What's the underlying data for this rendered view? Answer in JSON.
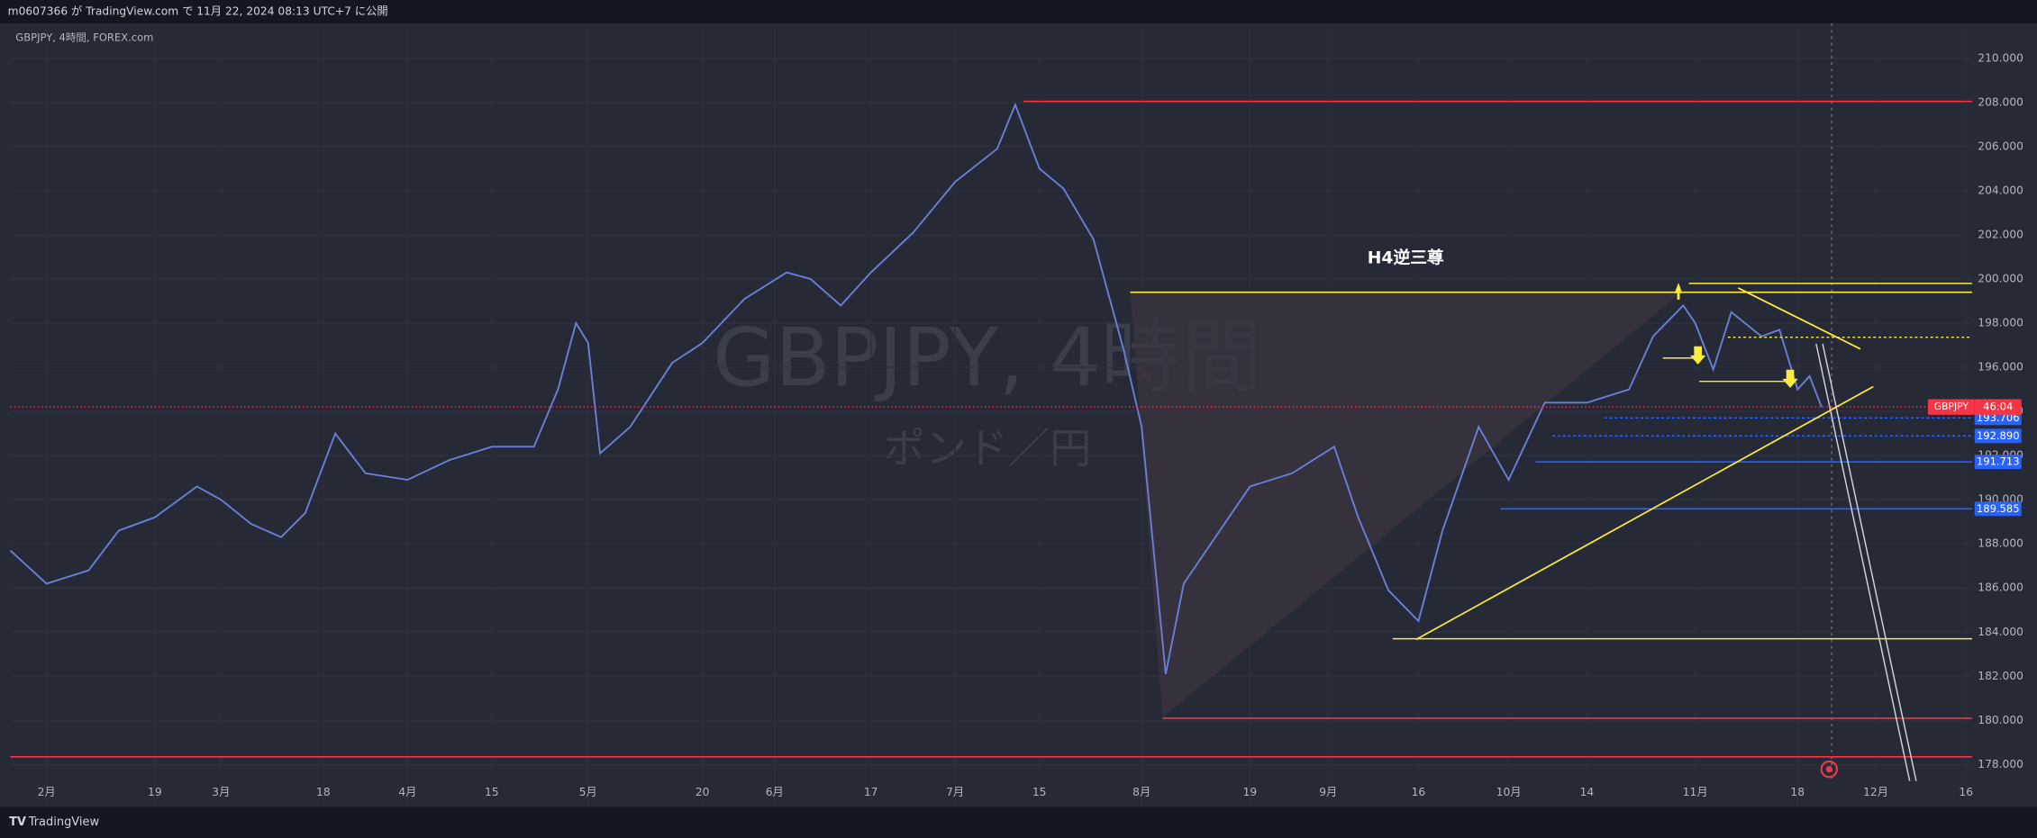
{
  "header": {
    "published": "m0607366 が TradingView.com で 11月 22, 2024 08:13 UTC+7 に公開",
    "symbol": "GBPJPY, 4時間, FOREX.com"
  },
  "footer": "TradingView",
  "chart_data": {
    "type": "line",
    "watermark": "GBPJPY, 4時間",
    "watermark_sub": "ポンド／円",
    "annotation": "H4逆三尊",
    "series": [
      {
        "name": "GBPJPY",
        "color": "#6a7fd8",
        "values": [
          187.7,
          186.2,
          186.8,
          188.6,
          189.2,
          190.6,
          190.0,
          188.9,
          188.3,
          189.4,
          193.0,
          191.2,
          190.9,
          191.8,
          192.4,
          192.4,
          195.0,
          198.0,
          197.1,
          192.1,
          193.3,
          196.2,
          197.1,
          199.1,
          200.3,
          200.0,
          198.8,
          200.3,
          202.1,
          204.4,
          205.9,
          207.9,
          205.0,
          204.1,
          201.8,
          196.8,
          193.3,
          182.1,
          186.2,
          188.6,
          190.6,
          191.2,
          192.4,
          189.2,
          185.9,
          184.5,
          188.6,
          193.3,
          190.9,
          194.4,
          194.4,
          195.0,
          197.4,
          198.8,
          198.0,
          195.9,
          198.5,
          197.4,
          197.7,
          195.0,
          195.6,
          194.2
        ]
      }
    ],
    "x": [
      "01-26",
      "02-01",
      "02-08",
      "02-13",
      "02-19",
      "02-26",
      "03-01",
      "03-06",
      "03-11",
      "03-15",
      "03-20",
      "03-25",
      "04-01",
      "04-08",
      "04-15",
      "04-22",
      "04-26",
      "04-29",
      "05-01",
      "05-03",
      "05-08",
      "05-15",
      "05-20",
      "05-27",
      "06-03",
      "06-07",
      "06-12",
      "06-17",
      "06-24",
      "07-01",
      "07-08",
      "07-11",
      "07-15",
      "07-19",
      "07-24",
      "07-29",
      "08-01",
      "08-05",
      "08-08",
      "08-14",
      "08-19",
      "08-26",
      "09-02",
      "09-06",
      "09-11",
      "09-16",
      "09-20",
      "09-26",
      "10-01",
      "10-07",
      "10-14",
      "10-21",
      "10-25",
      "10-30",
      "11-01",
      "11-04",
      "11-07",
      "11-12",
      "11-15",
      "11-18",
      "11-20",
      "11-22"
    ],
    "xlim": [
      "01-26",
      "12-17"
    ],
    "xticks": [
      {
        "value": "02-01",
        "label": "2月"
      },
      {
        "value": "02-19",
        "label": "19"
      },
      {
        "value": "03-01",
        "label": "3月"
      },
      {
        "value": "03-18",
        "label": "18"
      },
      {
        "value": "04-01",
        "label": "4月"
      },
      {
        "value": "04-15",
        "label": "15"
      },
      {
        "value": "05-01",
        "label": "5月"
      },
      {
        "value": "05-20",
        "label": "20"
      },
      {
        "value": "06-01",
        "label": "6月"
      },
      {
        "value": "06-17",
        "label": "17"
      },
      {
        "value": "07-01",
        "label": "7月"
      },
      {
        "value": "07-15",
        "label": "15"
      },
      {
        "value": "08-01",
        "label": "8月"
      },
      {
        "value": "08-19",
        "label": "19"
      },
      {
        "value": "09-01",
        "label": "9月"
      },
      {
        "value": "09-16",
        "label": "16"
      },
      {
        "value": "10-01",
        "label": "10月"
      },
      {
        "value": "10-14",
        "label": "14"
      },
      {
        "value": "11-01",
        "label": "11月"
      },
      {
        "value": "11-18",
        "label": "18"
      },
      {
        "value": "12-01",
        "label": "12月"
      },
      {
        "value": "12-16",
        "label": "16"
      }
    ],
    "ylim": [
      176.2,
      211.35
    ],
    "yticks": [
      {
        "value": 178,
        "label": "178.000"
      },
      {
        "value": 180,
        "label": "180.000"
      },
      {
        "value": 182,
        "label": "182.000"
      },
      {
        "value": 184,
        "label": "184.000"
      },
      {
        "value": 186,
        "label": "186.000"
      },
      {
        "value": 188,
        "label": "188.000"
      },
      {
        "value": 190,
        "label": "190.000"
      },
      {
        "value": 192,
        "label": "192.000"
      },
      {
        "value": 194,
        "label": "194.000"
      },
      {
        "value": 196,
        "label": "196.000"
      },
      {
        "value": 198,
        "label": "198.000"
      },
      {
        "value": 200,
        "label": "200.000"
      },
      {
        "value": 202,
        "label": "202.000"
      },
      {
        "value": 204,
        "label": "204.000"
      },
      {
        "value": 206,
        "label": "206.000"
      },
      {
        "value": 208,
        "label": "208.000"
      },
      {
        "value": 210,
        "label": "210.000"
      }
    ],
    "current_price": {
      "value": 194.2,
      "label": "GBPJPY",
      "countdown": "46:04",
      "color": "#f23645"
    },
    "levels": [
      {
        "value": 208.05,
        "color": "#f23645"
      },
      {
        "value": 199.4,
        "color": "#ffeb3b"
      },
      {
        "value": 199.8,
        "color": "#ffeb3b"
      },
      {
        "value": 193.706,
        "label": "193.706",
        "color": "#2962ff"
      },
      {
        "value": 192.89,
        "label": "192.890",
        "color": "#2962ff"
      },
      {
        "value": 191.713,
        "label": "191.713",
        "color": "#2962ff"
      },
      {
        "value": 189.585,
        "label": "189.585",
        "color": "#2962ff"
      },
      {
        "value": 183.7,
        "color": "#ffeb3b"
      },
      {
        "value": 180.1,
        "color": "#f23645"
      },
      {
        "value": 178.35,
        "color": "#f23645"
      }
    ]
  }
}
